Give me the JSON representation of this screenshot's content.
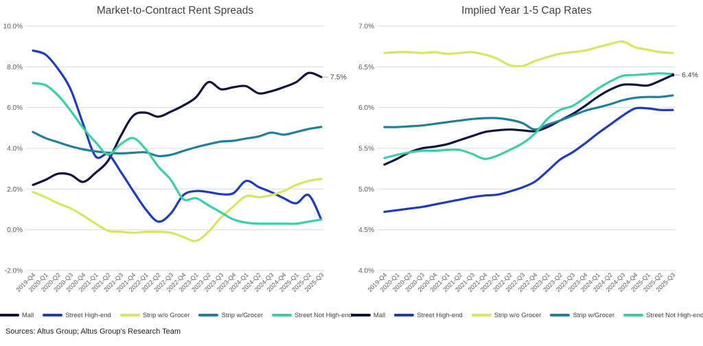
{
  "page": {
    "sources": "Sources: Altus Group; Altus Group's Research Team"
  },
  "chart_data": [
    {
      "type": "line",
      "title": "Market-to-Contract Rent Spreads",
      "ylim": [
        -2,
        10
      ],
      "ytick_step": 2,
      "yticks": [
        "10.0%",
        "8.0%",
        "6.0%",
        "4.0%",
        "2.0%",
        "0.0%",
        "-2.0%"
      ],
      "grid": true,
      "legend_position": "bottom",
      "x": [
        "2019-Q4",
        "2020-Q1",
        "2020-Q2",
        "2020-Q3",
        "2020-Q4",
        "2021-Q1",
        "2021-Q2",
        "2021-Q3",
        "2021-Q4",
        "2022-Q1",
        "2022-Q2",
        "2022-Q3",
        "2022-Q4",
        "2023-Q1",
        "2023-Q2",
        "2023-Q3",
        "2023-Q4",
        "2024-Q1",
        "2024-Q2",
        "2024-Q3",
        "2024-Q4",
        "2025-Q1",
        "2025-Q2",
        "2025-Q3"
      ],
      "end_label": {
        "series": "Mall",
        "text": "7.5%",
        "dot": false
      },
      "series": [
        {
          "name": "Mall",
          "color": "#0d1440",
          "values": [
            2.2,
            2.45,
            2.75,
            2.7,
            2.35,
            2.8,
            3.4,
            4.6,
            5.6,
            5.75,
            5.55,
            5.8,
            6.1,
            6.5,
            7.25,
            6.9,
            7.0,
            7.05,
            6.7,
            6.8,
            7.0,
            7.25,
            7.7,
            7.5
          ]
        },
        {
          "name": "Street High-end",
          "color": "#1e3ac2",
          "values": [
            8.8,
            8.6,
            7.9,
            6.9,
            5.2,
            3.6,
            3.7,
            2.85,
            1.9,
            1.0,
            0.4,
            0.8,
            1.7,
            1.9,
            1.85,
            1.75,
            1.8,
            2.4,
            2.1,
            1.85,
            1.55,
            1.3,
            1.7,
            0.5
          ]
        },
        {
          "name": "Strip w/o Grocer",
          "color": "#d9e45f",
          "values": [
            1.85,
            1.6,
            1.3,
            1.05,
            0.7,
            0.3,
            -0.05,
            -0.1,
            -0.15,
            -0.1,
            -0.1,
            -0.15,
            -0.35,
            -0.55,
            -0.1,
            0.6,
            1.15,
            1.65,
            1.6,
            1.7,
            1.9,
            2.2,
            2.4,
            2.5
          ]
        },
        {
          "name": "Strip w/Grocer",
          "color": "#217f9e",
          "values": [
            4.8,
            4.5,
            4.3,
            4.1,
            3.95,
            3.85,
            3.78,
            3.75,
            3.78,
            3.8,
            3.62,
            3.68,
            3.87,
            4.05,
            4.2,
            4.33,
            4.37,
            4.48,
            4.58,
            4.77,
            4.67,
            4.8,
            4.95,
            5.05
          ]
        },
        {
          "name": "Street Not High-end",
          "color": "#3bcfa3",
          "values": [
            7.2,
            7.1,
            6.6,
            5.85,
            5.0,
            4.3,
            3.7,
            4.2,
            4.5,
            3.95,
            3.1,
            2.45,
            1.5,
            1.55,
            1.2,
            0.85,
            0.5,
            0.35,
            0.3,
            0.3,
            0.3,
            0.3,
            0.4,
            0.5
          ]
        }
      ]
    },
    {
      "type": "line",
      "title": "Implied Year 1-5 Cap Rates",
      "ylim": [
        4,
        7
      ],
      "ytick_step": 0.5,
      "yticks": [
        "7.0%",
        "6.5%",
        "6.0%",
        "5.5%",
        "5.0%",
        "4.5%",
        "4.0%"
      ],
      "grid": true,
      "legend_position": "bottom",
      "x": [
        "2019-Q4",
        "2020-Q1",
        "2020-Q2",
        "2020-Q3",
        "2020-Q4",
        "2021-Q1",
        "2021-Q2",
        "2021-Q3",
        "2021-Q4",
        "2022-Q1",
        "2022-Q2",
        "2022-Q3",
        "2022-Q4",
        "2023-Q1",
        "2023-Q2",
        "2023-Q3",
        "2023-Q4",
        "2024-Q1",
        "2024-Q2",
        "2024-Q3",
        "2024-Q4",
        "2025-Q1",
        "2025-Q2",
        "2025-Q3"
      ],
      "end_label": {
        "series": "Mall",
        "text": "6.4%",
        "dot": true
      },
      "series": [
        {
          "name": "Mall",
          "color": "#0d1440",
          "values": [
            5.3,
            5.37,
            5.45,
            5.5,
            5.52,
            5.55,
            5.6,
            5.65,
            5.7,
            5.72,
            5.73,
            5.72,
            5.71,
            5.76,
            5.84,
            5.92,
            6.02,
            6.13,
            6.22,
            6.28,
            6.28,
            6.27,
            6.33,
            6.4
          ]
        },
        {
          "name": "Street High-end",
          "color": "#1e3ac2",
          "values": [
            4.72,
            4.74,
            4.76,
            4.78,
            4.81,
            4.84,
            4.87,
            4.9,
            4.92,
            4.93,
            4.97,
            5.02,
            5.09,
            5.22,
            5.36,
            5.45,
            5.56,
            5.68,
            5.79,
            5.9,
            5.99,
            5.99,
            5.97,
            5.97
          ]
        },
        {
          "name": "Strip w/o Grocer",
          "color": "#d9e45f",
          "values": [
            6.67,
            6.68,
            6.68,
            6.67,
            6.68,
            6.66,
            6.67,
            6.68,
            6.65,
            6.6,
            6.52,
            6.51,
            6.57,
            6.62,
            6.66,
            6.68,
            6.7,
            6.74,
            6.78,
            6.81,
            6.74,
            6.71,
            6.68,
            6.67
          ]
        },
        {
          "name": "Strip w/Grocer",
          "color": "#217f9e",
          "values": [
            5.76,
            5.76,
            5.77,
            5.78,
            5.8,
            5.82,
            5.84,
            5.86,
            5.87,
            5.87,
            5.85,
            5.81,
            5.73,
            5.79,
            5.84,
            5.9,
            5.96,
            6.0,
            6.04,
            6.09,
            6.12,
            6.13,
            6.13,
            6.15
          ]
        },
        {
          "name": "Street Not High-end",
          "color": "#3bcfa3",
          "values": [
            5.38,
            5.42,
            5.45,
            5.47,
            5.47,
            5.48,
            5.48,
            5.43,
            5.37,
            5.41,
            5.48,
            5.56,
            5.68,
            5.86,
            5.97,
            6.02,
            6.12,
            6.23,
            6.32,
            6.39,
            6.4,
            6.41,
            6.42,
            6.41
          ]
        }
      ]
    }
  ]
}
